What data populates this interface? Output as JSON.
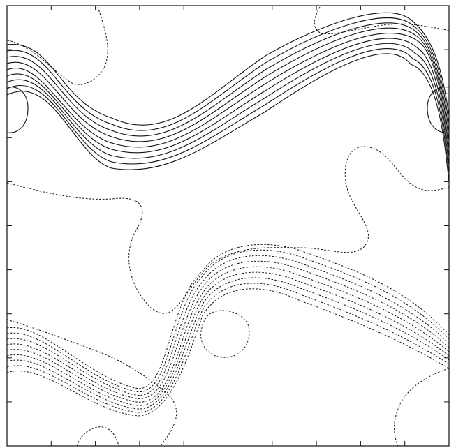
{
  "chart_data": {
    "type": "contour",
    "title": "",
    "xlabel": "",
    "ylabel": "",
    "xlim": [
      0,
      1
    ],
    "ylim": [
      0,
      1
    ],
    "x_ticks": 10,
    "y_ticks": 10,
    "grid": false,
    "legend": "none",
    "line_color": "#111111",
    "levels": {
      "positive": {
        "style": "solid",
        "count": 9
      },
      "negative": {
        "style": "dashed",
        "count": 9
      },
      "zero": {
        "style": "dashed"
      }
    }
  }
}
